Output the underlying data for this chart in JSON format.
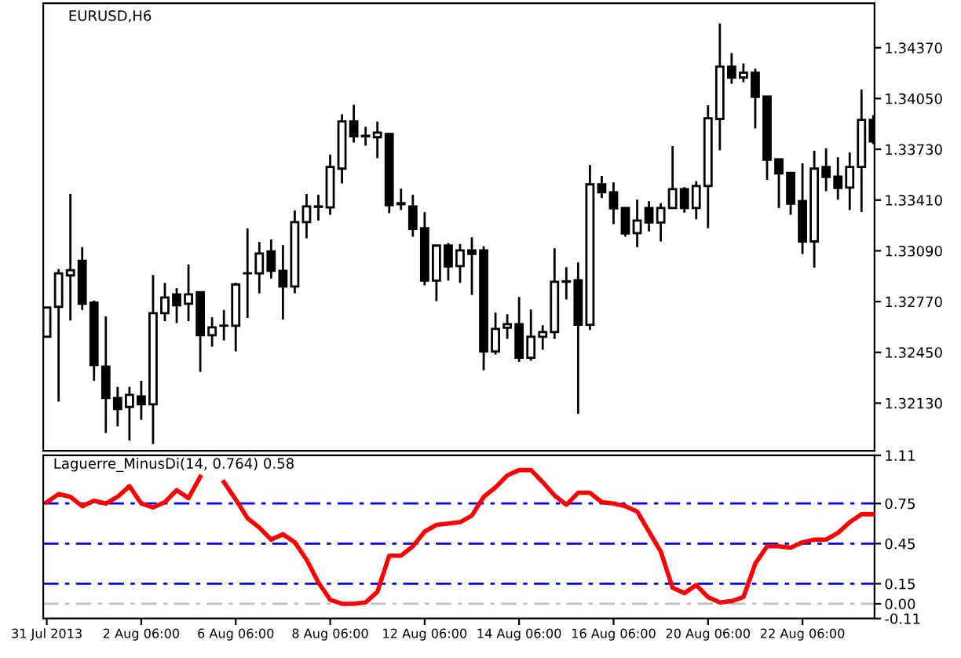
{
  "chart_data": [
    {
      "type": "candlestick",
      "title": "EURUSD,H6",
      "categories": [
        null,
        null,
        null,
        null,
        null,
        null,
        null,
        null,
        null,
        null,
        null,
        null,
        null,
        null,
        null,
        null,
        null,
        null,
        null,
        null,
        null,
        null,
        null,
        null,
        null,
        null,
        null,
        null,
        null,
        null,
        null,
        null,
        null,
        null,
        null,
        null,
        null,
        null,
        null,
        null,
        null,
        null,
        null,
        null,
        null,
        null,
        null,
        null,
        null,
        null,
        null,
        null,
        null,
        null,
        null,
        null,
        null,
        null,
        null,
        null,
        null,
        null,
        null,
        null,
        null,
        null,
        null,
        null,
        null,
        null,
        null
      ],
      "ohlc": [
        [
          1.32548,
          1.32733,
          1.32548,
          1.32733
        ],
        [
          1.32737,
          1.32974,
          1.32139,
          1.32948
        ],
        [
          1.32935,
          1.33449,
          1.32651,
          1.32968
        ],
        [
          1.33027,
          1.33113,
          1.32717,
          1.32756
        ],
        [
          1.32763,
          1.32776,
          1.32271,
          1.3237
        ],
        [
          1.3236,
          1.32677,
          1.31941,
          1.32162
        ],
        [
          1.32162,
          1.32232,
          1.31984,
          1.32093
        ],
        [
          1.32106,
          1.32232,
          1.31895,
          1.32182
        ],
        [
          1.32172,
          1.32271,
          1.32024,
          1.32123
        ],
        [
          1.32123,
          1.32938,
          1.31872,
          1.32697
        ],
        [
          1.32697,
          1.32888,
          1.32647,
          1.32796
        ],
        [
          1.32816,
          1.32855,
          1.32634,
          1.32746
        ],
        [
          1.32756,
          1.33004,
          1.32647,
          1.32816
        ],
        [
          1.32829,
          1.32829,
          1.32327,
          1.32558
        ],
        [
          1.32558,
          1.32671,
          1.32486,
          1.32608
        ],
        [
          1.32618,
          1.32717,
          1.32525,
          1.32618
        ],
        [
          1.32618,
          1.32888,
          1.32456,
          1.32878
        ],
        [
          1.32948,
          1.33232,
          1.32667,
          1.32948
        ],
        [
          1.32948,
          1.33146,
          1.32822,
          1.33073
        ],
        [
          1.33086,
          1.33162,
          1.32915,
          1.32964
        ],
        [
          1.32964,
          1.33126,
          1.32657,
          1.32865
        ],
        [
          1.32865,
          1.33344,
          1.32822,
          1.33271
        ],
        [
          1.33271,
          1.33449,
          1.33169,
          1.3337
        ],
        [
          1.3337,
          1.33443,
          1.33281,
          1.33367
        ],
        [
          1.33364,
          1.33697,
          1.33317,
          1.33618
        ],
        [
          1.33608,
          1.33951,
          1.33515,
          1.33905
        ],
        [
          1.33905,
          1.3401,
          1.33773,
          1.33812
        ],
        [
          1.33815,
          1.33872,
          1.33753,
          1.33812
        ],
        [
          1.33806,
          1.33905,
          1.33674,
          1.33835
        ],
        [
          1.33826,
          1.33835,
          1.33327,
          1.33377
        ],
        [
          1.3339,
          1.33482,
          1.33347,
          1.33384
        ],
        [
          1.3337,
          1.33443,
          1.33179,
          1.33228
        ],
        [
          1.33232,
          1.33334,
          1.32872,
          1.32902
        ],
        [
          1.32902,
          1.33123,
          1.32773,
          1.33123
        ],
        [
          1.33123,
          1.33139,
          1.32902,
          1.32991
        ],
        [
          1.32994,
          1.33133,
          1.32888,
          1.33093
        ],
        [
          1.33093,
          1.33175,
          1.32812,
          1.3307
        ],
        [
          1.33093,
          1.33119,
          1.32337,
          1.32456
        ],
        [
          1.32456,
          1.327,
          1.32436,
          1.32598
        ],
        [
          1.32605,
          1.3269,
          1.32535,
          1.32628
        ],
        [
          1.32628,
          1.32799,
          1.3239,
          1.32416
        ],
        [
          1.32416,
          1.3272,
          1.32397,
          1.32548
        ],
        [
          1.32548,
          1.32621,
          1.32466,
          1.32578
        ],
        [
          1.32578,
          1.33106,
          1.32535,
          1.32895
        ],
        [
          1.32898,
          1.32987,
          1.32783,
          1.32895
        ],
        [
          1.32905,
          1.33017,
          1.32063,
          1.32624
        ],
        [
          1.32624,
          1.33631,
          1.32591,
          1.33509
        ],
        [
          1.33509,
          1.33562,
          1.33423,
          1.33459
        ],
        [
          1.33459,
          1.33522,
          1.33258,
          1.33357
        ],
        [
          1.3336,
          1.3336,
          1.33179,
          1.33199
        ],
        [
          1.33202,
          1.33413,
          1.33113,
          1.33281
        ],
        [
          1.3336,
          1.33403,
          1.33212,
          1.33268
        ],
        [
          1.33268,
          1.3339,
          1.33149,
          1.3336
        ],
        [
          1.3336,
          1.3375,
          1.33357,
          1.33479
        ],
        [
          1.33479,
          1.33492,
          1.33331,
          1.3336
        ],
        [
          1.3336,
          1.33529,
          1.33288,
          1.33499
        ],
        [
          1.33499,
          1.34007,
          1.33232,
          1.33925
        ],
        [
          1.33921,
          1.34522,
          1.33723,
          1.34251
        ],
        [
          1.34251,
          1.34337,
          1.34142,
          1.34182
        ],
        [
          1.34182,
          1.34271,
          1.34152,
          1.34212
        ],
        [
          1.34212,
          1.34238,
          1.33862,
          1.3406
        ],
        [
          1.34063,
          1.34063,
          1.33538,
          1.33664
        ],
        [
          1.33667,
          1.33667,
          1.3336,
          1.33578
        ],
        [
          1.33581,
          1.33581,
          1.33317,
          1.33387
        ],
        [
          1.33403,
          1.33641,
          1.3307,
          1.33149
        ],
        [
          1.33149,
          1.3372,
          1.32984,
          1.33608
        ],
        [
          1.33618,
          1.33736,
          1.33466,
          1.33555
        ],
        [
          1.33558,
          1.3368,
          1.33413,
          1.33486
        ],
        [
          1.33489,
          1.3371,
          1.33347,
          1.33618
        ],
        [
          1.33618,
          1.34106,
          1.33334,
          1.33915
        ],
        [
          1.33915,
          1.33944,
          1.33763,
          1.33779
        ]
      ],
      "ylim": [
        1.3183,
        1.3465
      ],
      "yticks": [
        {
          "value": 1.3437,
          "label": "1.34370"
        },
        {
          "value": 1.3405,
          "label": "1.34050"
        },
        {
          "value": 1.3373,
          "label": "1.33730"
        },
        {
          "value": 1.3341,
          "label": "1.33410"
        },
        {
          "value": 1.3309,
          "label": "1.33090"
        },
        {
          "value": 1.3277,
          "label": "1.32770"
        },
        {
          "value": 1.3245,
          "label": "1.32450"
        },
        {
          "value": 1.3213,
          "label": "1.32130"
        }
      ]
    },
    {
      "type": "line",
      "title": "Laguerre_MinusDi(14, 0.764) 0.58",
      "categories": [
        "31 Jul 2013",
        null,
        null,
        null,
        null,
        null,
        null,
        null,
        "2 Aug 06:00",
        null,
        null,
        null,
        null,
        null,
        null,
        null,
        "6 Aug 06:00",
        null,
        null,
        null,
        null,
        null,
        null,
        null,
        "8 Aug 06:00",
        null,
        null,
        null,
        null,
        null,
        null,
        null,
        "12 Aug 06:00",
        null,
        null,
        null,
        null,
        null,
        null,
        null,
        "14 Aug 06:00",
        null,
        null,
        null,
        null,
        null,
        null,
        null,
        "16 Aug 06:00",
        null,
        null,
        null,
        null,
        null,
        null,
        null,
        "20 Aug 06:00",
        null,
        null,
        null,
        null,
        null,
        null,
        null,
        "22 Aug 06:00",
        null,
        null,
        null,
        null,
        null,
        null
      ],
      "series": [
        {
          "color": "#ff0000",
          "values": [
            0.76,
            0.82,
            0.8,
            0.73,
            0.77,
            0.75,
            0.8,
            0.88,
            0.75,
            0.72,
            0.76,
            0.85,
            0.79,
            0.95,
            null,
            0.91,
            0.78,
            0.64,
            0.57,
            0.48,
            0.52,
            0.46,
            0.33,
            0.16,
            0.03,
            0.0,
            0.0,
            0.01,
            0.09,
            0.36,
            0.36,
            0.43,
            0.54,
            0.59,
            0.6,
            0.61,
            0.66,
            0.8,
            0.87,
            0.96,
            1.0,
            1.0,
            0.91,
            0.81,
            0.74,
            0.83,
            0.83,
            0.76,
            0.75,
            0.73,
            0.69,
            0.54,
            0.39,
            0.12,
            0.08,
            0.14,
            0.05,
            0.01,
            0.02,
            0.05,
            0.3,
            0.43,
            0.43,
            0.42,
            0.46,
            0.48,
            0.48,
            0.53,
            0.61,
            0.67,
            0.67
          ]
        }
      ],
      "ylim": [
        -0.11,
        1.11
      ],
      "yticks": [
        1.11,
        0.75,
        0.45,
        0.15,
        {
          "value": 0,
          "label": "0.00"
        },
        {
          "value": -0.11,
          "label": "-0.11"
        }
      ],
      "ref_lines": [
        {
          "axis": "y",
          "value": 0.75,
          "color": "#0000ff",
          "line_style": "dashed"
        },
        {
          "axis": "y",
          "value": 0.45,
          "color": "#0000ff",
          "line_style": "dashed"
        },
        {
          "axis": "y",
          "value": 0.15,
          "color": "#0000ff",
          "line_style": "dashed"
        },
        {
          "axis": "y",
          "value": 0,
          "color": "#c0c0c0",
          "line_style": "dashed"
        }
      ]
    }
  ]
}
